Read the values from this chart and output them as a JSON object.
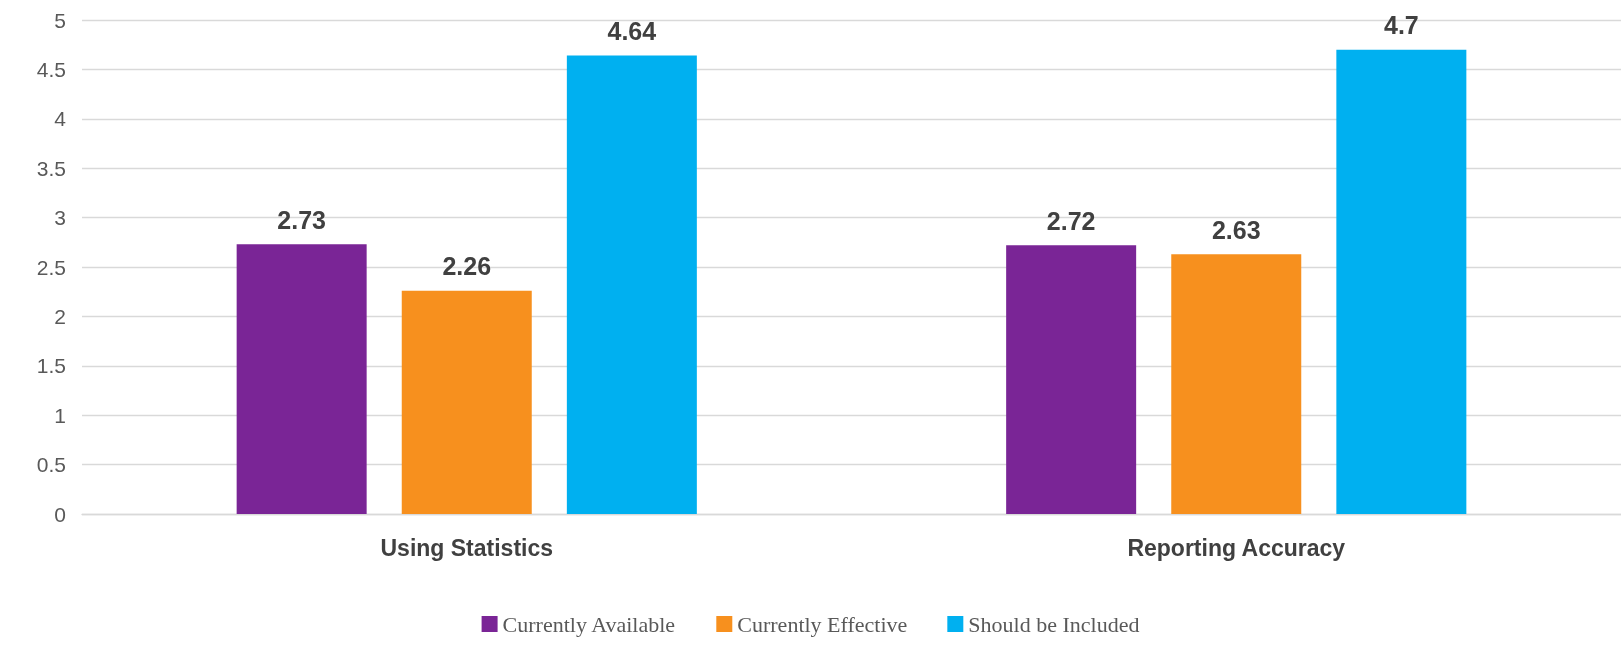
{
  "chart_data": {
    "type": "bar",
    "categories": [
      "Using Statistics",
      "Reporting Accuracy"
    ],
    "series": [
      {
        "name": "Currently Available",
        "color": "#7a2596",
        "values": [
          2.73,
          2.72
        ]
      },
      {
        "name": "Currently Effective",
        "color": "#f7901e",
        "values": [
          2.26,
          2.63
        ]
      },
      {
        "name": "Should be Included",
        "color": "#00b0f0",
        "values": [
          4.64,
          4.7
        ]
      }
    ],
    "ylim": [
      0,
      5
    ],
    "yticks": [
      0,
      0.5,
      1,
      1.5,
      2,
      2.5,
      3,
      3.5,
      4,
      4.5,
      5
    ],
    "grid": "y",
    "legend": "bottom",
    "data_labels": true
  }
}
